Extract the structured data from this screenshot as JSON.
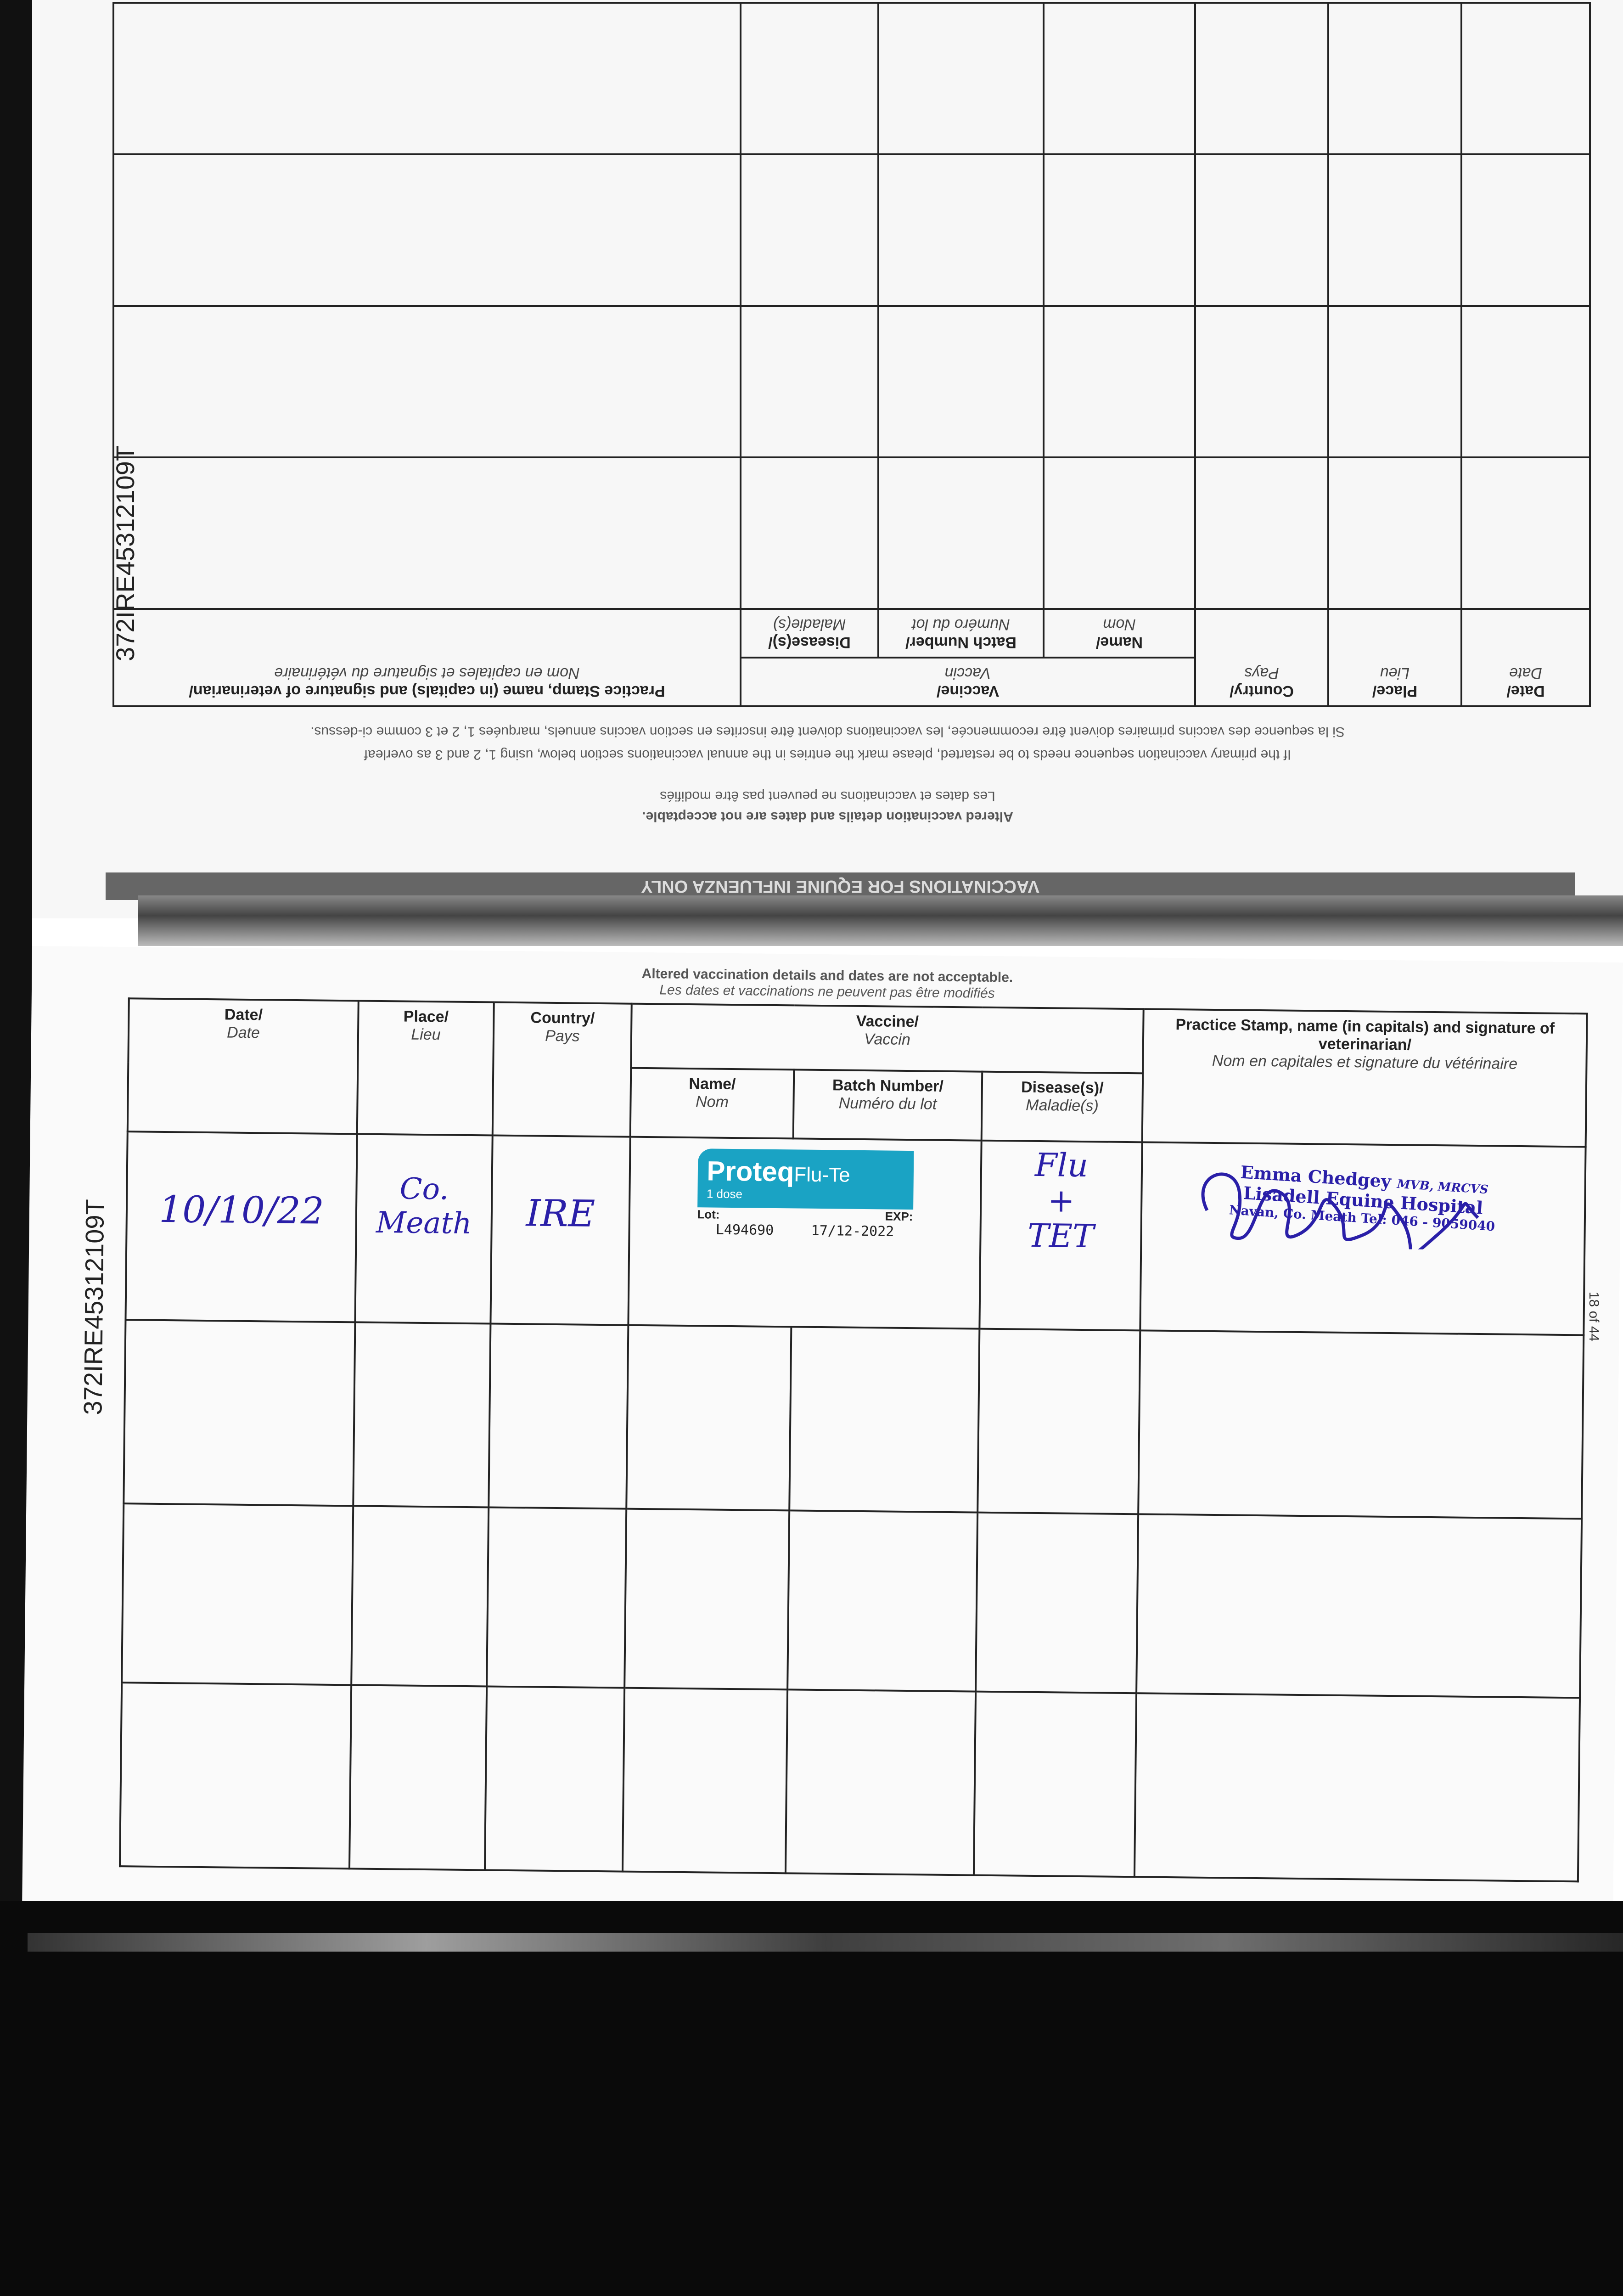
{
  "document_id": "372IRE45312109T",
  "page_number": "18 of 44",
  "top_page": {
    "banner": "VACCINATIONS FOR EQUINE INFLUENZA ONLY",
    "notice_en": "Altered vaccination details and dates are not acceptable.",
    "notice_fr": "Les dates et vaccinations ne peuvent pas être modifiés",
    "restart_en": "If the primary vaccination sequence needs to be restarted, please mark the entries in the annual vaccinations section below, using 1, 2 and 3 as overleaf",
    "restart_fr": "Si la sequence des vaccins primaires doivent être recommencée, les vaccinations doivent être inscrites en section vaccins annuels, marquées 1, 2 et 3 comme ci-dessus."
  },
  "headers": {
    "date": {
      "en": "Date/",
      "fr": "Date"
    },
    "place": {
      "en": "Place/",
      "fr": "Lieu"
    },
    "country": {
      "en": "Country/",
      "fr": "Pays"
    },
    "vaccine": {
      "en": "Vaccine/",
      "fr": "Vaccin"
    },
    "name": {
      "en": "Name/",
      "fr": "Nom"
    },
    "batch": {
      "en": "Batch Number/",
      "fr": "Numéro du lot"
    },
    "disease": {
      "en": "Disease(s)/",
      "fr": "Maladie(s)"
    },
    "stamp": {
      "en": "Practice Stamp, name (in capitals) and signature of veterinarian/",
      "fr": "Nom en capitales et signature du vétérinaire"
    }
  },
  "bottom_page": {
    "notice_en": "Altered vaccination details and dates are not acceptable.",
    "notice_fr": "Les dates et vaccinations ne peuvent pas être modifiés",
    "entries": [
      {
        "date": "10/10/22",
        "place": "Co. Meath",
        "country": "IRE",
        "sticker": {
          "brand": "Proteq",
          "product": "Flu-Te",
          "dose": "1 dose",
          "lot_label": "Lot:",
          "exp_label": "EXP:",
          "lot": "L494690",
          "exp": "17/12-2022"
        },
        "disease_1": "Flu",
        "disease_plus": "+",
        "disease_2": "TET",
        "stamp": {
          "name": "Emma Chedgey",
          "quals": "MVB, MRCVS",
          "practice": "Lisadell Equine Hospital",
          "address": "Navan, Co. Meath   Tel: 046 - 9059040"
        }
      }
    ]
  },
  "colors": {
    "ink": "#2a1fa8",
    "sticker": "#1aa3c4"
  }
}
